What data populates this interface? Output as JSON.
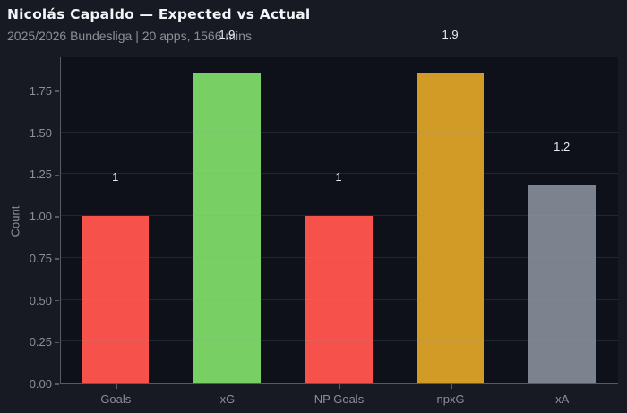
{
  "header": {
    "title": "Nicolás Capaldo — Expected vs Actual",
    "subtitle": "2025/2026 Bundesliga | 20 apps, 1566 mins"
  },
  "chart_data": {
    "type": "bar",
    "title": "Nicolás Capaldo — Expected vs Actual",
    "subtitle": "2025/2026 Bundesliga | 20 apps, 1566 mins",
    "categories": [
      "Goals",
      "xG",
      "NP Goals",
      "npxG",
      "xA"
    ],
    "values": [
      1,
      1.85,
      1,
      1.85,
      1.18
    ],
    "value_labels": [
      "1",
      "1.9",
      "1",
      "1.9",
      "1.2"
    ],
    "bar_colors": [
      "#F6514A",
      "#78CF63",
      "#F6514A",
      "#D19B26",
      "#7D838E"
    ],
    "xlabel": "",
    "ylabel": "Count",
    "ylim": [
      0,
      1.953
    ],
    "yticks": [
      "0.00",
      "0.25",
      "0.50",
      "0.75",
      "1.00",
      "1.25",
      "1.50",
      "1.75"
    ],
    "grid": true,
    "legend": false
  },
  "colors": {
    "figure_bg": "#171A23",
    "plot_bg": "#0E111A",
    "axis_line": "#565B66",
    "grid_line": "rgba(140,150,165,0.16)",
    "tick_label": "#8A8F99",
    "data_label": "#E8EBF0",
    "title_text": "#F2F4F8",
    "subtitle_text": "#8A8F99"
  }
}
